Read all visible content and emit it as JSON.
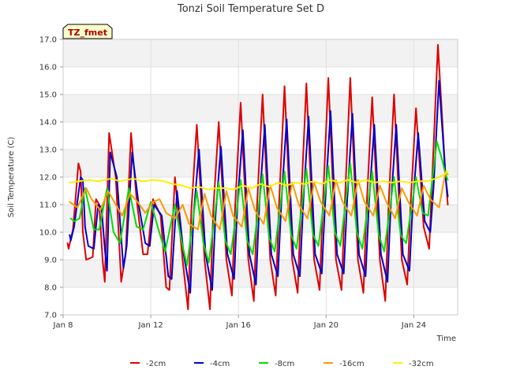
{
  "chart_data": {
    "type": "line",
    "title": "Tonzi Soil Temperature Set D",
    "xlabel": "Time",
    "ylabel": "Soil Temperature (C)",
    "annotation": "TZ_fmet",
    "xlim": [
      0,
      18
    ],
    "ylim": [
      7.0,
      17.0
    ],
    "x_ticks": [
      {
        "value": 0,
        "label": "Jan 8"
      },
      {
        "value": 4,
        "label": "Jan 12"
      },
      {
        "value": 8,
        "label": "Jan 16"
      },
      {
        "value": 12,
        "label": "Jan 20"
      },
      {
        "value": 16,
        "label": "Jan 24"
      }
    ],
    "y_ticks": [
      "7.0",
      "8.0",
      "9.0",
      "10.0",
      "11.0",
      "12.0",
      "13.0",
      "14.0",
      "15.0",
      "16.0",
      "17.0"
    ],
    "grid": true,
    "legend_position": "bottom",
    "series": [
      {
        "name": "-2cm",
        "color": "#dd0000",
        "x": [
          0.2,
          0.25,
          0.45,
          0.7,
          0.8,
          0.9,
          1.05,
          1.35,
          1.5,
          1.65,
          1.8,
          1.9,
          2.1,
          2.4,
          2.65,
          2.85,
          3.1,
          3.35,
          3.65,
          3.85,
          4.1,
          4.45,
          4.7,
          4.85,
          5.1,
          5.45,
          5.7,
          5.85,
          6.1,
          6.45,
          6.7,
          6.85,
          7.1,
          7.45,
          7.7,
          7.85,
          8.1,
          8.45,
          8.7,
          8.85,
          9.1,
          9.45,
          9.7,
          9.85,
          10.1,
          10.45,
          10.7,
          10.85,
          11.1,
          11.45,
          11.7,
          11.85,
          12.1,
          12.45,
          12.7,
          12.85,
          13.1,
          13.45,
          13.7,
          13.85,
          14.1,
          14.45,
          14.7,
          14.85,
          15.1,
          15.45,
          15.7,
          15.85,
          16.1,
          16.45,
          16.7,
          16.85,
          17.1,
          17.45,
          17.55
        ],
        "values": [
          9.6,
          9.4,
          10.1,
          12.5,
          12.2,
          10.0,
          9.0,
          9.1,
          11.2,
          11.0,
          9.0,
          8.2,
          13.6,
          12.0,
          8.2,
          9.2,
          13.6,
          11.2,
          9.2,
          9.2,
          11.2,
          10.6,
          8.0,
          7.9,
          12.0,
          9.0,
          7.2,
          10.8,
          13.9,
          9.0,
          7.2,
          10.8,
          14.0,
          9.0,
          7.7,
          11.0,
          14.7,
          9.0,
          7.5,
          11.0,
          15.0,
          9.0,
          7.7,
          11.0,
          15.3,
          9.0,
          7.8,
          11.0,
          15.4,
          9.0,
          7.9,
          11.0,
          15.6,
          9.0,
          7.9,
          11.0,
          15.6,
          9.0,
          7.8,
          11.0,
          14.9,
          9.0,
          7.5,
          11.0,
          15.0,
          9.0,
          8.1,
          11.0,
          14.5,
          10.2,
          9.4,
          12.2,
          16.8,
          12.0,
          11.0
        ]
      },
      {
        "name": "-4cm",
        "color": "#0000cc",
        "x": [
          0.3,
          0.35,
          0.5,
          0.8,
          0.9,
          1.0,
          1.15,
          1.4,
          1.6,
          1.75,
          1.9,
          2.0,
          2.15,
          2.45,
          2.75,
          2.9,
          3.15,
          3.45,
          3.75,
          3.95,
          4.15,
          4.5,
          4.8,
          4.95,
          5.2,
          5.5,
          5.8,
          5.95,
          6.2,
          6.5,
          6.8,
          6.95,
          7.2,
          7.5,
          7.8,
          7.95,
          8.2,
          8.5,
          8.8,
          8.95,
          9.2,
          9.5,
          9.8,
          9.95,
          10.2,
          10.5,
          10.8,
          10.95,
          11.2,
          11.5,
          11.8,
          11.95,
          12.2,
          12.5,
          12.8,
          12.95,
          13.2,
          13.5,
          13.8,
          13.95,
          14.2,
          14.5,
          14.8,
          14.95,
          15.2,
          15.5,
          15.8,
          15.95,
          16.2,
          16.5,
          16.75,
          16.9,
          17.15,
          17.45,
          17.55
        ],
        "values": [
          9.9,
          9.7,
          10.2,
          12.0,
          11.9,
          10.2,
          9.5,
          9.4,
          11.0,
          10.9,
          9.4,
          8.6,
          12.9,
          12.0,
          8.7,
          9.5,
          12.9,
          11.0,
          9.6,
          9.5,
          11.0,
          10.6,
          8.4,
          8.3,
          11.5,
          9.2,
          7.8,
          10.6,
          13.0,
          9.2,
          7.9,
          10.6,
          13.1,
          9.2,
          8.3,
          11.0,
          13.7,
          9.2,
          8.1,
          11.0,
          13.9,
          9.2,
          8.4,
          11.0,
          14.1,
          9.2,
          8.4,
          11.0,
          14.2,
          9.2,
          8.5,
          11.0,
          14.4,
          9.2,
          8.5,
          11.0,
          14.3,
          9.2,
          8.4,
          11.0,
          13.9,
          9.2,
          8.2,
          11.0,
          13.9,
          9.2,
          8.6,
          11.0,
          13.6,
          10.4,
          10.0,
          11.6,
          15.5,
          12.0,
          11.3
        ]
      },
      {
        "name": "-8cm",
        "color": "#00dd00",
        "x": [
          0.35,
          0.5,
          0.75,
          1.0,
          1.4,
          1.65,
          2.0,
          2.3,
          2.6,
          3.0,
          3.35,
          3.65,
          4.0,
          4.35,
          4.65,
          5.1,
          5.4,
          5.65,
          6.1,
          6.4,
          6.65,
          7.1,
          7.4,
          7.65,
          8.1,
          8.4,
          8.65,
          9.1,
          9.4,
          9.65,
          10.1,
          10.4,
          10.65,
          11.1,
          11.4,
          11.65,
          12.1,
          12.4,
          12.65,
          13.1,
          13.4,
          13.65,
          14.1,
          14.4,
          14.65,
          15.1,
          15.4,
          15.65,
          16.1,
          16.4,
          16.65,
          17.05,
          17.3,
          17.45,
          17.55
        ],
        "values": [
          10.5,
          10.4,
          10.5,
          11.6,
          10.1,
          10.1,
          11.6,
          10.0,
          9.6,
          11.6,
          10.2,
          10.1,
          11.1,
          10.1,
          9.3,
          11.0,
          9.7,
          8.8,
          11.5,
          9.6,
          8.9,
          11.8,
          9.7,
          9.2,
          11.9,
          9.7,
          9.2,
          12.1,
          9.8,
          9.3,
          12.2,
          9.9,
          9.4,
          12.3,
          9.9,
          9.5,
          12.4,
          10.0,
          9.5,
          12.5,
          10.0,
          9.4,
          12.2,
          9.9,
          9.3,
          12.0,
          9.9,
          9.6,
          12.0,
          10.7,
          10.6,
          13.3,
          12.6,
          12.1,
          11.9
        ]
      },
      {
        "name": "-16cm",
        "color": "#ff9900",
        "x": [
          0.3,
          0.65,
          1.05,
          1.3,
          1.7,
          2.05,
          2.4,
          2.7,
          3.05,
          3.4,
          3.75,
          4.1,
          4.4,
          4.7,
          5.1,
          5.45,
          5.75,
          6.15,
          6.45,
          6.75,
          7.15,
          7.45,
          7.75,
          8.15,
          8.45,
          8.75,
          9.15,
          9.45,
          9.75,
          10.15,
          10.45,
          10.75,
          11.15,
          11.45,
          11.75,
          12.15,
          12.45,
          12.75,
          13.15,
          13.45,
          13.75,
          14.15,
          14.45,
          14.75,
          15.15,
          15.45,
          15.75,
          16.15,
          16.45,
          16.75,
          17.15,
          17.45,
          17.55
        ],
        "values": [
          11.1,
          10.9,
          11.6,
          11.2,
          10.8,
          11.5,
          11.0,
          10.6,
          11.4,
          11.1,
          10.7,
          11.1,
          11.2,
          10.7,
          10.5,
          11.0,
          10.3,
          10.1,
          11.4,
          10.6,
          10.1,
          11.5,
          10.6,
          10.2,
          11.6,
          10.8,
          10.3,
          11.7,
          10.9,
          10.4,
          11.8,
          11.0,
          10.5,
          11.8,
          11.1,
          10.6,
          11.9,
          11.1,
          10.6,
          11.9,
          11.1,
          10.6,
          11.7,
          11.1,
          10.5,
          11.6,
          11.1,
          10.6,
          11.7,
          11.2,
          10.9,
          12.2,
          12.1
        ]
      },
      {
        "name": "-32cm",
        "color": "#ffee00",
        "x": [
          0.3,
          0.7,
          1.2,
          1.6,
          2.2,
          2.6,
          3.2,
          3.6,
          4.2,
          4.6,
          5.0,
          5.4,
          5.8,
          6.2,
          6.6,
          7.0,
          7.4,
          7.8,
          8.2,
          8.6,
          9.0,
          9.4,
          9.8,
          10.2,
          10.6,
          11.0,
          11.4,
          11.8,
          12.2,
          12.6,
          13.0,
          13.4,
          13.8,
          14.2,
          14.6,
          15.0,
          15.4,
          15.8,
          16.2,
          16.6,
          17.0,
          17.4,
          17.55
        ],
        "values": [
          11.8,
          11.85,
          11.9,
          11.85,
          11.95,
          11.85,
          11.95,
          11.85,
          11.9,
          11.85,
          11.75,
          11.7,
          11.6,
          11.65,
          11.55,
          11.6,
          11.6,
          11.55,
          11.7,
          11.6,
          11.75,
          11.65,
          11.8,
          11.7,
          11.8,
          11.75,
          11.85,
          11.75,
          11.9,
          11.8,
          11.9,
          11.8,
          11.9,
          11.8,
          11.85,
          11.8,
          11.85,
          11.8,
          11.85,
          11.85,
          11.95,
          12.1,
          12.2
        ]
      }
    ]
  }
}
